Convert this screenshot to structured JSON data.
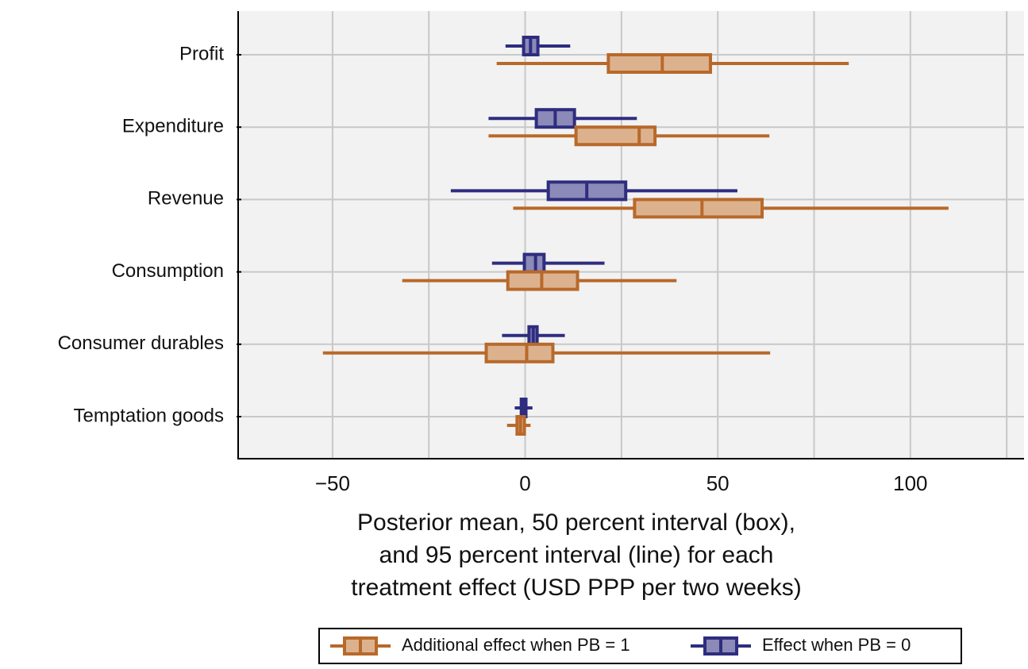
{
  "chart_data": {
    "type": "interval",
    "categories": [
      "Profit",
      "Expenditure",
      "Revenue",
      "Consumption",
      "Consumer durables",
      "Temptation goods"
    ],
    "series": [
      {
        "name": "Effect when PB = 0",
        "color": "#2e2d7f",
        "fill": "#8b8ab8",
        "mean": [
          1.4,
          7.8,
          16,
          2.7,
          2.1,
          -0.4
        ],
        "box_low": [
          -0.4,
          2.9,
          6,
          -0.2,
          1,
          -1
        ],
        "box_high": [
          3.3,
          12.8,
          26.1,
          4.9,
          3.1,
          0.2
        ],
        "low": [
          -5.1,
          -9.5,
          -19.3,
          -8.6,
          -6,
          -2.7
        ],
        "high": [
          11.7,
          29,
          55.1,
          20.6,
          10.3,
          1.9
        ]
      },
      {
        "name": "Additional effect when PB = 1",
        "color": "#b8692a",
        "fill": "#dcb28e",
        "mean": [
          35.6,
          29.6,
          45.9,
          4.3,
          0.4,
          -1.2
        ],
        "box_low": [
          21.6,
          13.2,
          28.4,
          -4.5,
          -10.1,
          -2.1
        ],
        "box_high": [
          48.1,
          33.7,
          61.5,
          13.6,
          7.2,
          -0.2
        ],
        "low": [
          -7.4,
          -9.5,
          -3.1,
          -31.9,
          -52.5,
          -4.7
        ],
        "high": [
          84,
          63.4,
          109.9,
          39.3,
          63.6,
          1.4
        ]
      }
    ],
    "xlim": [
      -74.5,
      129.5
    ],
    "xticks": [
      {
        "value": -50,
        "label": "−50"
      },
      0,
      50,
      100
    ],
    "xminor_grid": [
      -25,
      25,
      75,
      125
    ],
    "xlabel": [
      "Posterior mean, 50 percent interval (box),",
      "and 95 percent interval (line) for each",
      "treatment effect (USD PPP per two weeks)"
    ],
    "grid": true,
    "legend": "bottom"
  }
}
